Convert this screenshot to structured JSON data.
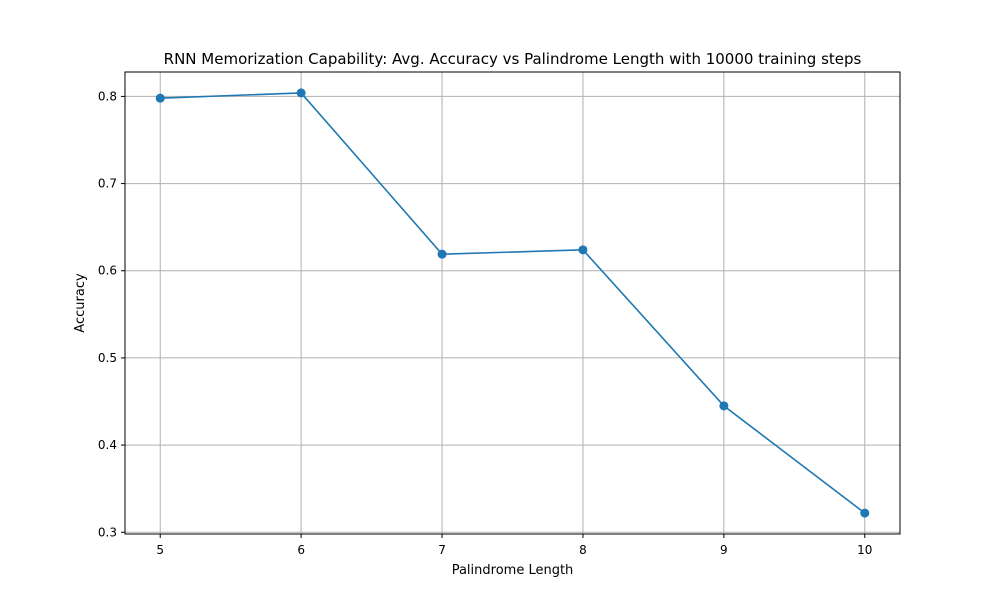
{
  "chart_data": {
    "type": "line",
    "title": "RNN Memorization Capability: Avg. Accuracy vs Palindrome Length with 10000 training steps",
    "xlabel": "Palindrome Length",
    "ylabel": "Accuracy",
    "x": [
      5,
      6,
      7,
      8,
      9,
      10
    ],
    "series": [
      {
        "values": [
          0.798,
          0.804,
          0.619,
          0.624,
          0.445,
          0.322
        ],
        "color": "#1f77b4",
        "marker": "circle"
      }
    ],
    "xticks": [
      "5",
      "6",
      "7",
      "8",
      "9",
      "10"
    ],
    "yticks": [
      "0.3",
      "0.4",
      "0.5",
      "0.6",
      "0.7",
      "0.8"
    ],
    "xlim": [
      4.75,
      10.25
    ],
    "ylim": [
      0.298,
      0.828
    ],
    "grid": true,
    "legend": "none"
  }
}
